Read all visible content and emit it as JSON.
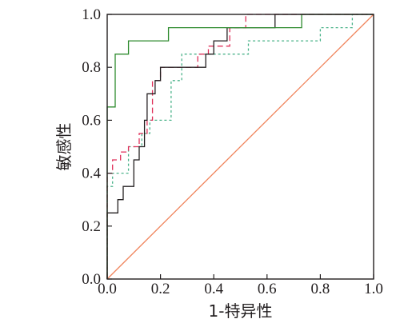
{
  "chart_data": {
    "type": "line",
    "title": "",
    "xlabel": "1-特异性",
    "ylabel": "敏感性",
    "xlim": [
      0,
      1
    ],
    "ylim": [
      0,
      1
    ],
    "x_ticks": [
      "0.0",
      "0.2",
      "0.4",
      "0.6",
      "0.8",
      "1.0"
    ],
    "y_ticks": [
      "0.0",
      "0.2",
      "0.4",
      "0.6",
      "0.8",
      "1.0"
    ],
    "grid": false,
    "legend": "none",
    "series": [
      {
        "color": "#2e8b2e",
        "style": "solid",
        "x": [
          0,
          0,
          0.03,
          0.03,
          0.08,
          0.08,
          0.23,
          0.23,
          0.63,
          0.63,
          0.73,
          0.73,
          1
        ],
        "y": [
          0,
          0.65,
          0.65,
          0.85,
          0.85,
          0.9,
          0.9,
          0.95,
          0.95,
          0.95,
          0.95,
          1,
          1
        ]
      },
      {
        "color": "#231f20",
        "style": "solid",
        "x": [
          0,
          0,
          0.04,
          0.04,
          0.06,
          0.06,
          0.1,
          0.1,
          0.12,
          0.12,
          0.14,
          0.14,
          0.15,
          0.15,
          0.18,
          0.18,
          0.2,
          0.2,
          0.37,
          0.37,
          0.4,
          0.4,
          0.45,
          0.45,
          0.63,
          0.63,
          1
        ],
        "y": [
          0,
          0.25,
          0.25,
          0.3,
          0.3,
          0.35,
          0.35,
          0.45,
          0.45,
          0.5,
          0.5,
          0.6,
          0.6,
          0.7,
          0.7,
          0.75,
          0.75,
          0.8,
          0.8,
          0.85,
          0.85,
          0.9,
          0.9,
          0.95,
          0.95,
          1,
          1
        ]
      },
      {
        "color": "#e0315b",
        "style": "dashed",
        "x": [
          0,
          0,
          0.02,
          0.02,
          0.05,
          0.05,
          0.08,
          0.08,
          0.12,
          0.12,
          0.15,
          0.15,
          0.17,
          0.17,
          0.2,
          0.2,
          0.34,
          0.34,
          0.38,
          0.38,
          0.46,
          0.46,
          0.52,
          0.52,
          1
        ],
        "y": [
          0,
          0.4,
          0.4,
          0.45,
          0.45,
          0.48,
          0.48,
          0.5,
          0.5,
          0.55,
          0.55,
          0.6,
          0.6,
          0.75,
          0.75,
          0.8,
          0.8,
          0.85,
          0.85,
          0.88,
          0.88,
          0.95,
          0.95,
          1,
          1
        ]
      },
      {
        "color": "#4bb38a",
        "style": "dotted",
        "x": [
          0,
          0,
          0.02,
          0.02,
          0.08,
          0.08,
          0.13,
          0.13,
          0.16,
          0.16,
          0.24,
          0.24,
          0.28,
          0.28,
          0.38,
          0.38,
          0.53,
          0.53,
          0.8,
          0.8,
          0.92,
          0.92,
          1
        ],
        "y": [
          0,
          0.35,
          0.35,
          0.4,
          0.4,
          0.5,
          0.5,
          0.55,
          0.55,
          0.6,
          0.6,
          0.75,
          0.75,
          0.85,
          0.85,
          0.85,
          0.85,
          0.9,
          0.9,
          0.95,
          0.95,
          1,
          1
        ]
      },
      {
        "color": "#f0845c",
        "style": "solid",
        "x": [
          0,
          1
        ],
        "y": [
          0,
          1
        ]
      }
    ]
  }
}
